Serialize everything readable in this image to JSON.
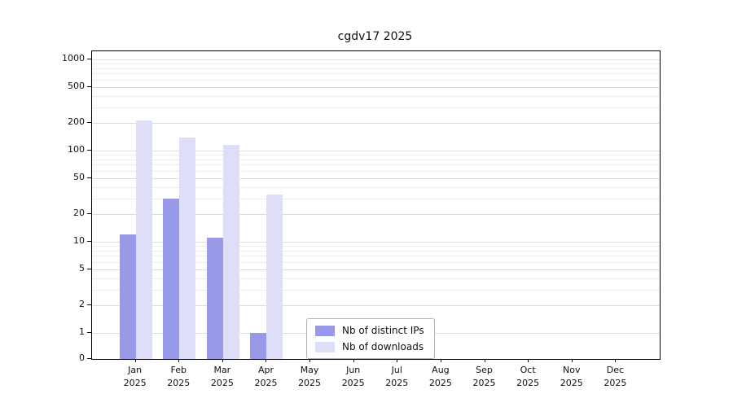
{
  "chart_data": {
    "type": "bar",
    "title": "cgdv17 2025",
    "year": "2025",
    "categories": [
      "Jan",
      "Feb",
      "Mar",
      "Apr",
      "May",
      "Jun",
      "Jul",
      "Aug",
      "Sep",
      "Oct",
      "Nov",
      "Dec"
    ],
    "series": [
      {
        "name": "Nb of distinct IPs",
        "color": "#9999ea",
        "values": [
          12,
          30,
          11,
          1,
          0,
          0,
          0,
          0,
          0,
          0,
          0,
          0
        ]
      },
      {
        "name": "Nb of downloads",
        "color": "#dedef8",
        "values": [
          215,
          140,
          115,
          33,
          0,
          0,
          0,
          0,
          0,
          0,
          0,
          0
        ]
      }
    ],
    "y_ticks": [
      0,
      1,
      2,
      5,
      10,
      20,
      50,
      100,
      200,
      500,
      1000
    ],
    "y_scale": "log (with 0 baseline segment)",
    "ylim": [
      0,
      1200
    ],
    "grid": "horizontal log major+minor lines",
    "legend_position": "bottom-center-inside",
    "bar_colors": {
      "distinct_ips": "#9999ea",
      "downloads": "#dedef8"
    }
  }
}
